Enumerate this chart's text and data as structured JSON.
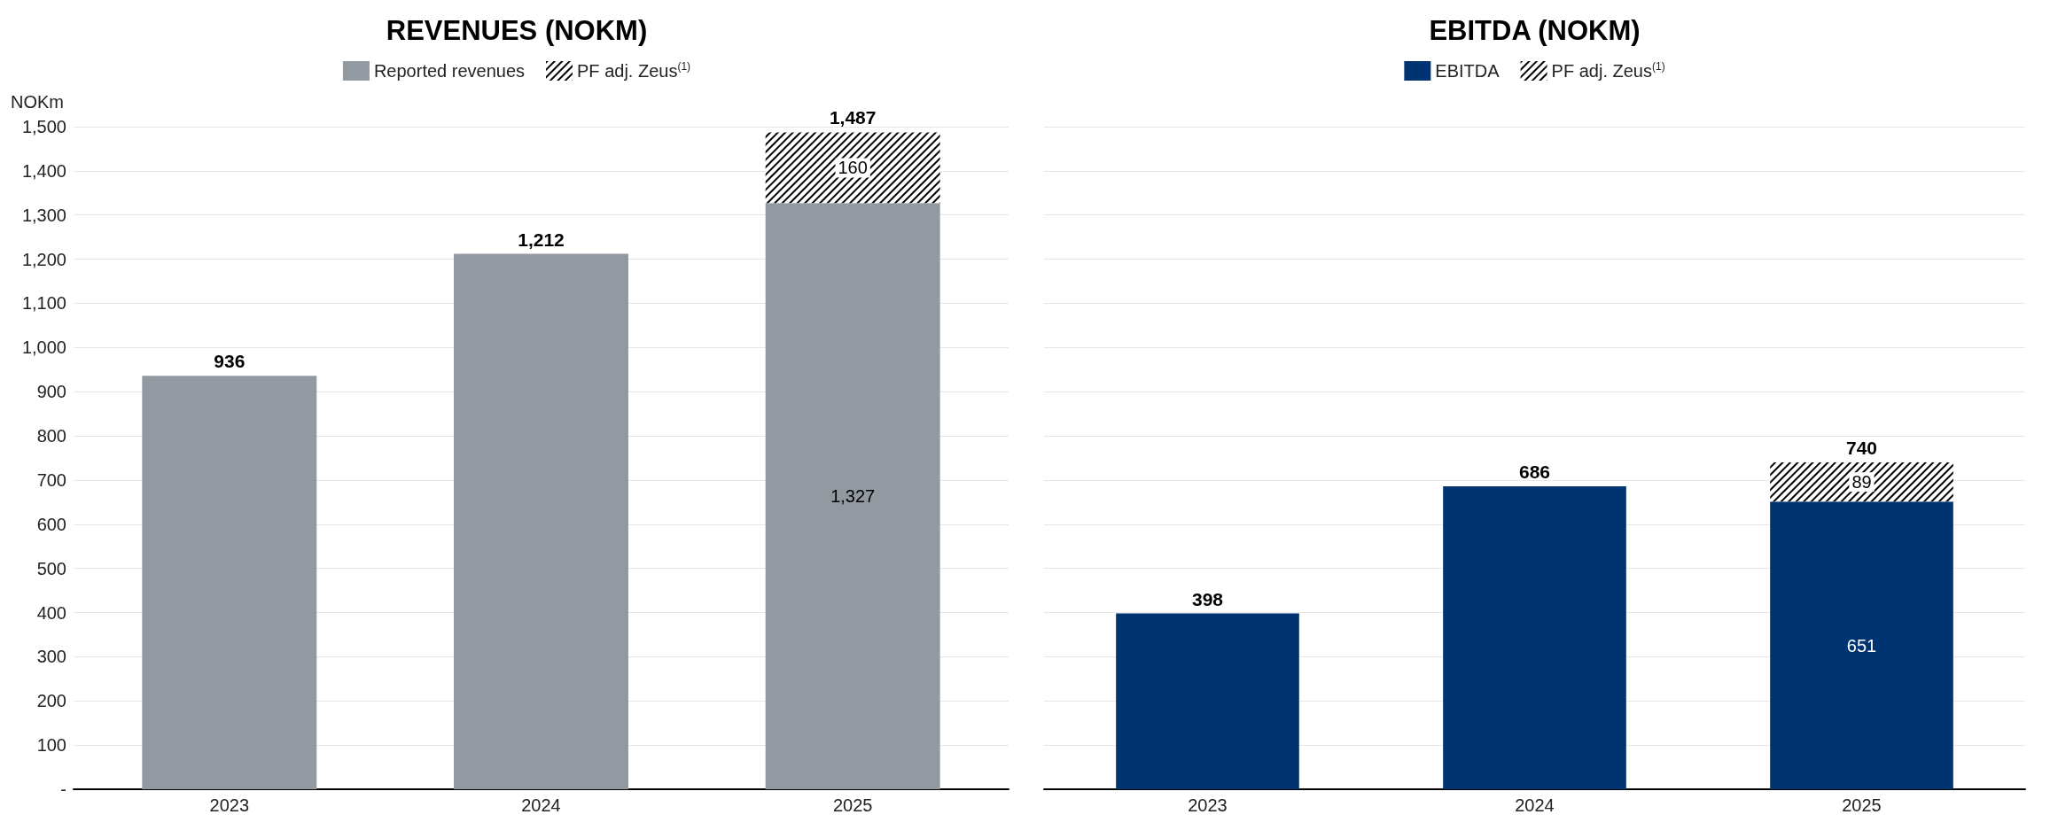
{
  "chart_data": [
    {
      "type": "bar",
      "title": "REVENUES (NOKM)",
      "ylabel": "NOKm",
      "categories": [
        "2023",
        "2024",
        "2025"
      ],
      "stacked": true,
      "series": [
        {
          "name": "Reported revenues",
          "color": "#9299a0",
          "values": [
            936,
            1212,
            1327
          ],
          "value_labels": [
            null,
            null,
            "1,327"
          ]
        },
        {
          "name": "PF adj. Zeus$^{(1)}$",
          "color": "#000000",
          "values": [
            null,
            null,
            160
          ],
          "value_labels": [
            null,
            null,
            "160"
          ]
        }
      ],
      "totals": [
        "936",
        "1,212",
        "1,487"
      ],
      "ylim": [
        0,
        1500
      ],
      "yticks": [
        {
          "value": 0,
          "label": "-"
        },
        100,
        200,
        300,
        400,
        500,
        600,
        700,
        800,
        900,
        {
          "value": 1000,
          "label": "1,000"
        },
        {
          "value": 1100,
          "label": "1,100"
        },
        {
          "value": 1200,
          "label": "1,200"
        },
        {
          "value": 1300,
          "label": "1,300"
        },
        {
          "value": 1400,
          "label": "1,400"
        },
        {
          "value": 1500,
          "label": "1,500"
        }
      ],
      "grid": "y",
      "legend": "top"
    },
    {
      "type": "bar",
      "title": "EBITDA (NOKM)",
      "categories": [
        "2023",
        "2024",
        "2025"
      ],
      "stacked": true,
      "series": [
        {
          "name": "EBITDA",
          "color": "#003371",
          "values": [
            398,
            686,
            651
          ],
          "value_labels": [
            null,
            null,
            "651"
          ]
        },
        {
          "name": "PF adj. Zeus$^{(1)}$",
          "color": "#000000",
          "values": [
            null,
            null,
            89
          ],
          "value_labels": [
            null,
            null,
            "89"
          ]
        }
      ],
      "totals": [
        "398",
        "686",
        "740"
      ],
      "ylim": [
        0,
        1500
      ],
      "yticks": [
        0,
        100,
        200,
        300,
        400,
        500,
        600,
        700,
        800,
        900,
        1000,
        1100,
        1200,
        1300,
        1400,
        1500
      ],
      "grid": "y",
      "legend": "top",
      "tick_labels": "x"
    }
  ]
}
